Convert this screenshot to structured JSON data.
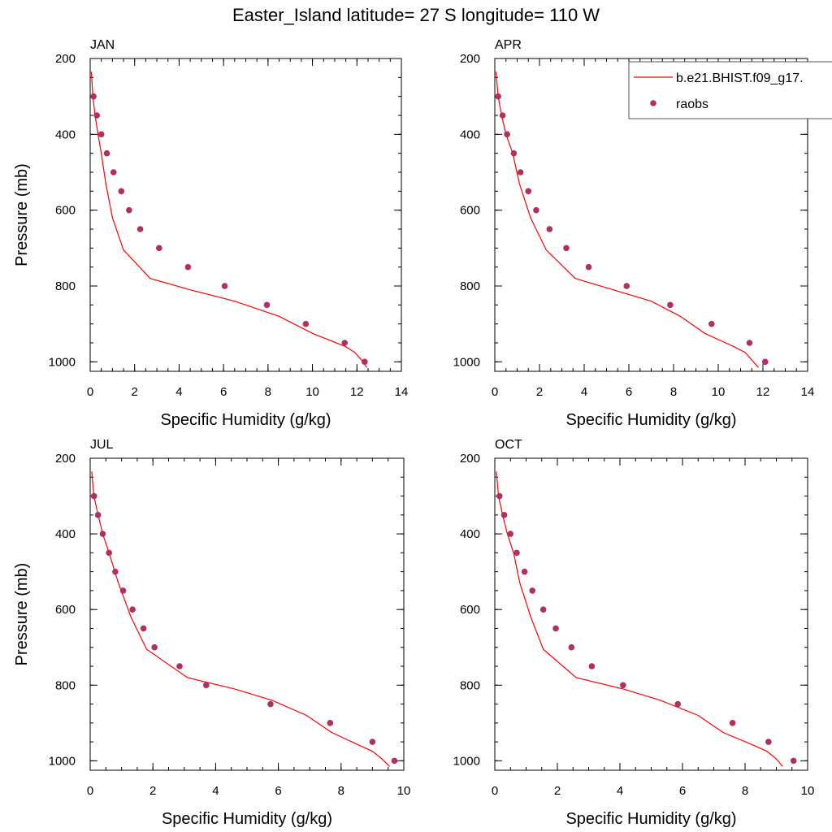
{
  "title": "Easter_Island  latitude= 27 S longitude= 110 W",
  "legend": {
    "model_label": "b.e21.BHIST.f09_g17.",
    "obs_label": "raobs",
    "model_color": "#ff0000",
    "obs_color": "#b03060"
  },
  "chart_data": [
    {
      "type": "line",
      "panel": "JAN",
      "xlabel": "Specific Humidity (g/kg)",
      "ylabel": "Pressure (mb)",
      "xlim": [
        0,
        14
      ],
      "ylim": [
        1025,
        200
      ],
      "xticks": [
        0,
        2,
        4,
        6,
        8,
        10,
        12,
        14
      ],
      "yticks": [
        200,
        400,
        600,
        800,
        1000
      ],
      "model": {
        "x": [
          0.05,
          0.12,
          0.22,
          0.35,
          0.5,
          0.7,
          1.0,
          1.5,
          2.7,
          4.5,
          6.5,
          8.5,
          10.0,
          11.5,
          11.9,
          12.2,
          12.45
        ],
        "y": [
          235,
          300,
          350,
          400,
          450,
          530,
          620,
          705,
          780,
          810,
          840,
          880,
          925,
          960,
          975,
          995,
          1015
        ]
      },
      "obs": {
        "x": [
          0.15,
          0.3,
          0.5,
          0.75,
          1.05,
          1.4,
          1.75,
          2.25,
          3.1,
          4.4,
          6.05,
          7.95,
          9.7,
          11.45,
          12.35
        ],
        "y": [
          300,
          350,
          400,
          450,
          500,
          550,
          600,
          650,
          700,
          750,
          800,
          850,
          900,
          950,
          1000
        ]
      }
    },
    {
      "type": "line",
      "panel": "APR",
      "xlabel": "Specific Humidity (g/kg)",
      "ylabel": "",
      "xlim": [
        0,
        14
      ],
      "ylim": [
        1025,
        200
      ],
      "xticks": [
        0,
        2,
        4,
        6,
        8,
        10,
        12,
        14
      ],
      "yticks": [
        200,
        400,
        600,
        800,
        1000
      ],
      "model": {
        "x": [
          0.05,
          0.15,
          0.3,
          0.5,
          0.8,
          1.1,
          1.6,
          2.3,
          3.6,
          5.3,
          7.0,
          8.3,
          9.4,
          10.7,
          11.2,
          11.5,
          11.8
        ],
        "y": [
          235,
          300,
          350,
          400,
          450,
          530,
          620,
          705,
          780,
          810,
          840,
          880,
          925,
          960,
          975,
          995,
          1015
        ]
      },
      "obs": {
        "x": [
          0.15,
          0.35,
          0.55,
          0.85,
          1.15,
          1.5,
          1.85,
          2.45,
          3.2,
          4.2,
          5.9,
          7.85,
          9.7,
          11.4,
          12.1
        ],
        "y": [
          300,
          350,
          400,
          450,
          500,
          550,
          600,
          650,
          700,
          750,
          800,
          850,
          900,
          950,
          1000
        ]
      }
    },
    {
      "type": "line",
      "panel": "JUL",
      "xlabel": "Specific Humidity (g/kg)",
      "ylabel": "Pressure (mb)",
      "xlim": [
        0,
        10
      ],
      "ylim": [
        1025,
        200
      ],
      "xticks": [
        0,
        2,
        4,
        6,
        8,
        10
      ],
      "yticks": [
        200,
        400,
        600,
        800,
        1000
      ],
      "model": {
        "x": [
          0.05,
          0.12,
          0.25,
          0.4,
          0.6,
          0.9,
          1.3,
          1.8,
          3.1,
          4.6,
          5.8,
          6.9,
          7.7,
          8.6,
          9.0,
          9.3,
          9.55
        ],
        "y": [
          235,
          300,
          350,
          400,
          450,
          530,
          620,
          705,
          780,
          810,
          840,
          880,
          925,
          960,
          975,
          995,
          1015
        ]
      },
      "obs": {
        "x": [
          0.12,
          0.25,
          0.4,
          0.6,
          0.8,
          1.05,
          1.35,
          1.7,
          2.05,
          2.85,
          3.7,
          5.75,
          7.65,
          9.0,
          9.7
        ],
        "y": [
          300,
          350,
          400,
          450,
          500,
          550,
          600,
          650,
          700,
          750,
          800,
          850,
          900,
          950,
          1000
        ]
      }
    },
    {
      "type": "line",
      "panel": "OCT",
      "xlabel": "Specific Humidity (g/kg)",
      "ylabel": "",
      "xlim": [
        0,
        10
      ],
      "ylim": [
        1025,
        200
      ],
      "xticks": [
        0,
        2,
        4,
        6,
        8,
        10
      ],
      "yticks": [
        200,
        400,
        600,
        800,
        1000
      ],
      "model": {
        "x": [
          0.05,
          0.12,
          0.25,
          0.4,
          0.6,
          0.8,
          1.15,
          1.55,
          2.6,
          4.1,
          5.3,
          6.5,
          7.3,
          8.3,
          8.7,
          9.0,
          9.2
        ],
        "y": [
          235,
          300,
          350,
          400,
          450,
          530,
          620,
          705,
          780,
          810,
          840,
          880,
          925,
          960,
          975,
          995,
          1015
        ]
      },
      "obs": {
        "x": [
          0.15,
          0.3,
          0.5,
          0.7,
          0.95,
          1.2,
          1.55,
          1.95,
          2.45,
          3.1,
          4.1,
          5.85,
          7.6,
          8.75,
          9.55
        ],
        "y": [
          300,
          350,
          400,
          450,
          500,
          550,
          600,
          650,
          700,
          750,
          800,
          850,
          900,
          950,
          1000
        ]
      }
    }
  ]
}
